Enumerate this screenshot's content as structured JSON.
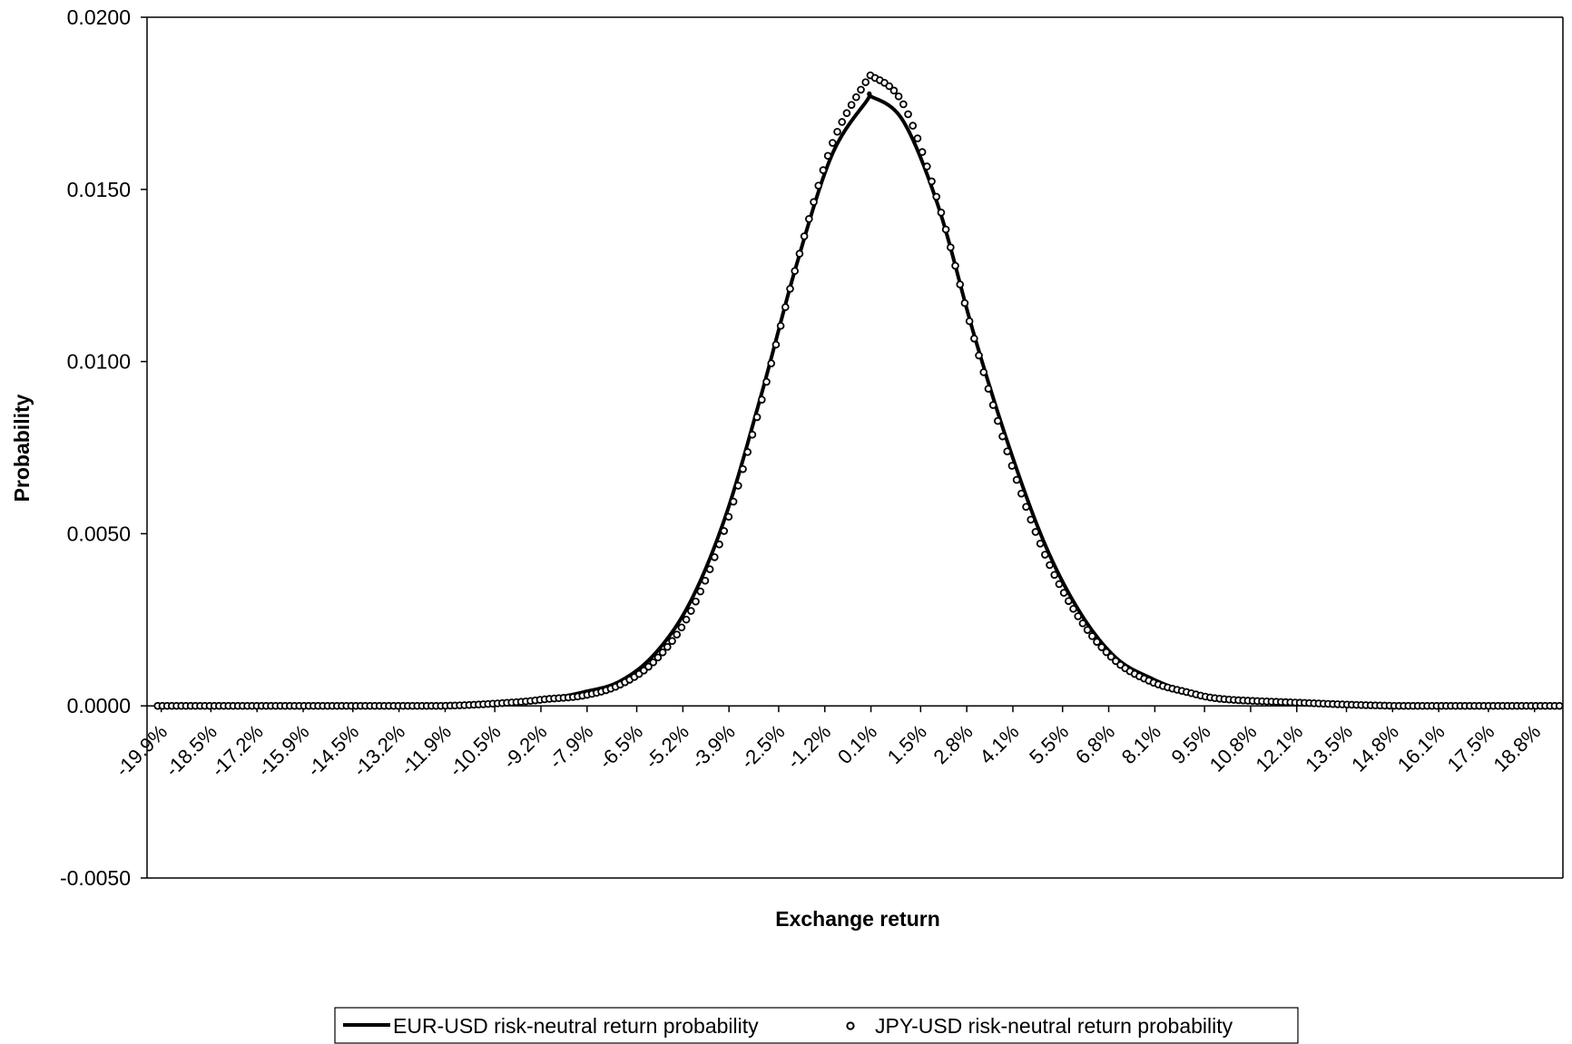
{
  "chart_data": {
    "type": "line",
    "title": "",
    "xlabel": "Exchange return",
    "ylabel": "Probability",
    "ylim": [
      -0.005,
      0.02
    ],
    "yticks": [
      "0.0200",
      "0.0150",
      "0.0100",
      "0.0050",
      "0.0000",
      "-0.0050"
    ],
    "x_range_percent": [
      -20.3,
      19.6
    ],
    "xtick_labels": [
      "-19.9%",
      "-18.5%",
      "-17.2%",
      "-15.9%",
      "-14.5%",
      "-13.2%",
      "-11.9%",
      "-10.5%",
      "-9.2%",
      "-7.9%",
      "-6.5%",
      "-5.2%",
      "-3.9%",
      "-2.5%",
      "-1.2%",
      "0.1%",
      "1.5%",
      "2.8%",
      "4.1%",
      "5.5%",
      "6.8%",
      "8.1%",
      "9.5%",
      "10.8%",
      "12.1%",
      "13.5%",
      "14.8%",
      "16.1%",
      "17.5%",
      "18.8%"
    ],
    "grid": false,
    "legend_position": "bottom",
    "series": [
      {
        "name": "EUR-USD risk-neutral return probability",
        "style": "line",
        "color": "#000000",
        "x": [
          -20.0,
          -15.0,
          -12.0,
          -10.0,
          -9.0,
          -8.0,
          -7.0,
          -6.0,
          -5.0,
          -4.0,
          -3.0,
          -2.0,
          -1.0,
          0.0,
          0.1,
          1.0,
          2.0,
          3.0,
          4.0,
          5.0,
          6.0,
          7.0,
          8.0,
          9.0,
          10.0,
          12.0,
          15.0,
          19.6
        ],
        "y": [
          0.0,
          0.0,
          0.0,
          0.0001,
          0.0002,
          0.0004,
          0.0007,
          0.0015,
          0.003,
          0.0055,
          0.009,
          0.0128,
          0.016,
          0.0176,
          0.0177,
          0.017,
          0.0145,
          0.0108,
          0.0075,
          0.0047,
          0.0027,
          0.0014,
          0.0008,
          0.0004,
          0.0002,
          0.0001,
          0.0,
          0.0
        ]
      },
      {
        "name": "JPY-USD risk-neutral return probability",
        "style": "markers",
        "marker": "open-circle",
        "color": "#000000",
        "x": [
          -20.0,
          -15.0,
          -12.0,
          -10.0,
          -9.0,
          -8.0,
          -7.0,
          -6.0,
          -5.0,
          -4.0,
          -3.0,
          -2.0,
          -1.0,
          0.0,
          0.1,
          1.0,
          2.0,
          3.0,
          4.0,
          5.0,
          6.0,
          7.0,
          8.0,
          9.0,
          10.0,
          12.0,
          15.0,
          19.6
        ],
        "y": [
          0.0,
          0.0,
          0.0,
          0.0001,
          0.0002,
          0.0003,
          0.0006,
          0.0013,
          0.0027,
          0.0052,
          0.0088,
          0.0128,
          0.0163,
          0.0182,
          0.0183,
          0.0175,
          0.0146,
          0.0107,
          0.0072,
          0.0044,
          0.0025,
          0.0013,
          0.0007,
          0.0004,
          0.0002,
          0.0001,
          0.0,
          0.0
        ]
      }
    ]
  }
}
